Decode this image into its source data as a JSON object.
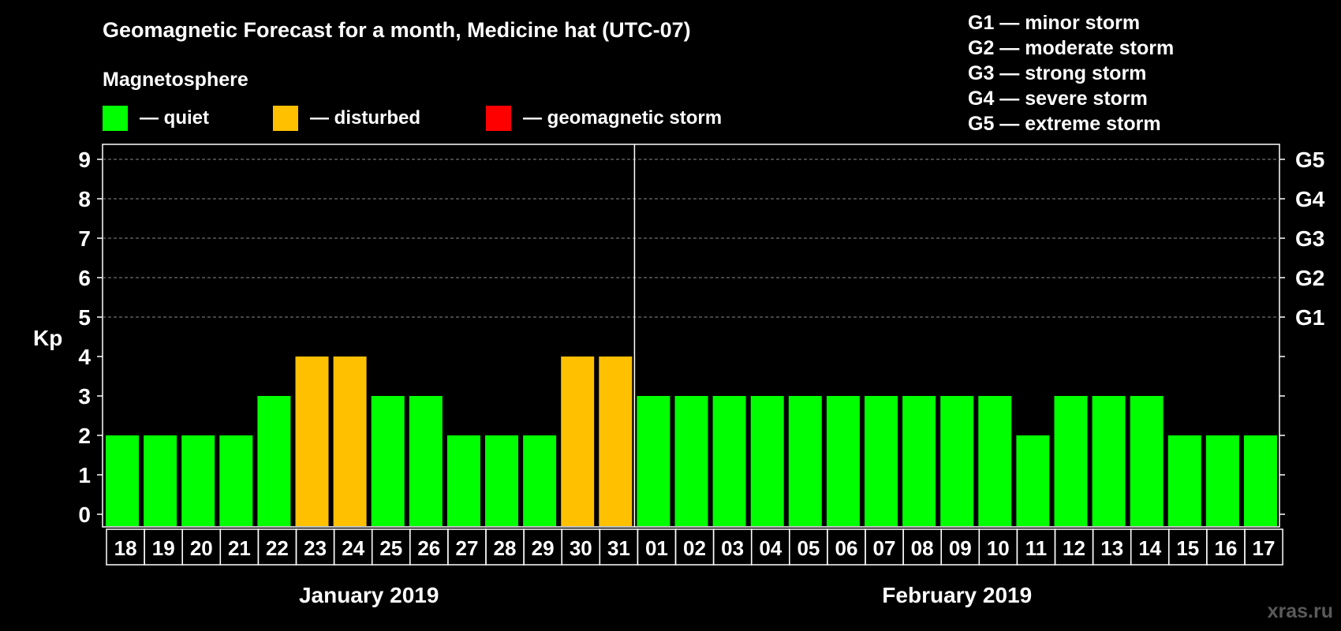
{
  "title": "Geomagnetic Forecast for a month, Medicine hat (UTC-07)",
  "legend": {
    "heading": "Magnetosphere",
    "items": [
      {
        "label": "— quiet",
        "color": "#00ff00"
      },
      {
        "label": "— disturbed",
        "color": "#ffc000"
      },
      {
        "label": "— geomagnetic storm",
        "color": "#ff0000"
      }
    ]
  },
  "storm_scale": [
    "G1 — minor storm",
    "G2 — moderate storm",
    "G3 — strong storm",
    "G4 — severe storm",
    "G5 — extreme storm"
  ],
  "watermark": "xras.ru",
  "colors": {
    "quiet": "#00ff00",
    "disturbed": "#ffc000",
    "storm": "#ff0000",
    "background": "#000000"
  },
  "chart_data": {
    "type": "bar",
    "ylabel": "Kp",
    "ylim": [
      0,
      9
    ],
    "yticks": [
      "0",
      "1",
      "2",
      "3",
      "4",
      "5",
      "6",
      "7",
      "8",
      "9"
    ],
    "right_axis_labels": {
      "5": "G1",
      "6": "G2",
      "7": "G3",
      "8": "G4",
      "9": "G5"
    },
    "grid": "dashed horizontal at 5-9",
    "categories": [
      "18",
      "19",
      "20",
      "21",
      "22",
      "23",
      "24",
      "25",
      "26",
      "27",
      "28",
      "29",
      "30",
      "31",
      "01",
      "02",
      "03",
      "04",
      "05",
      "06",
      "07",
      "08",
      "09",
      "10",
      "11",
      "12",
      "13",
      "14",
      "15",
      "16",
      "17"
    ],
    "values": [
      2,
      2,
      2,
      2,
      3,
      4,
      4,
      3,
      3,
      2,
      2,
      2,
      4,
      4,
      3,
      3,
      3,
      3,
      3,
      3,
      3,
      3,
      3,
      3,
      2,
      3,
      3,
      3,
      2,
      2,
      2
    ],
    "status": [
      "quiet",
      "quiet",
      "quiet",
      "quiet",
      "quiet",
      "disturbed",
      "disturbed",
      "quiet",
      "quiet",
      "quiet",
      "quiet",
      "quiet",
      "disturbed",
      "disturbed",
      "quiet",
      "quiet",
      "quiet",
      "quiet",
      "quiet",
      "quiet",
      "quiet",
      "quiet",
      "quiet",
      "quiet",
      "quiet",
      "quiet",
      "quiet",
      "quiet",
      "quiet",
      "quiet",
      "quiet"
    ],
    "months": [
      {
        "label": "January 2019",
        "days": 14
      },
      {
        "label": "February 2019",
        "days": 17
      }
    ]
  }
}
